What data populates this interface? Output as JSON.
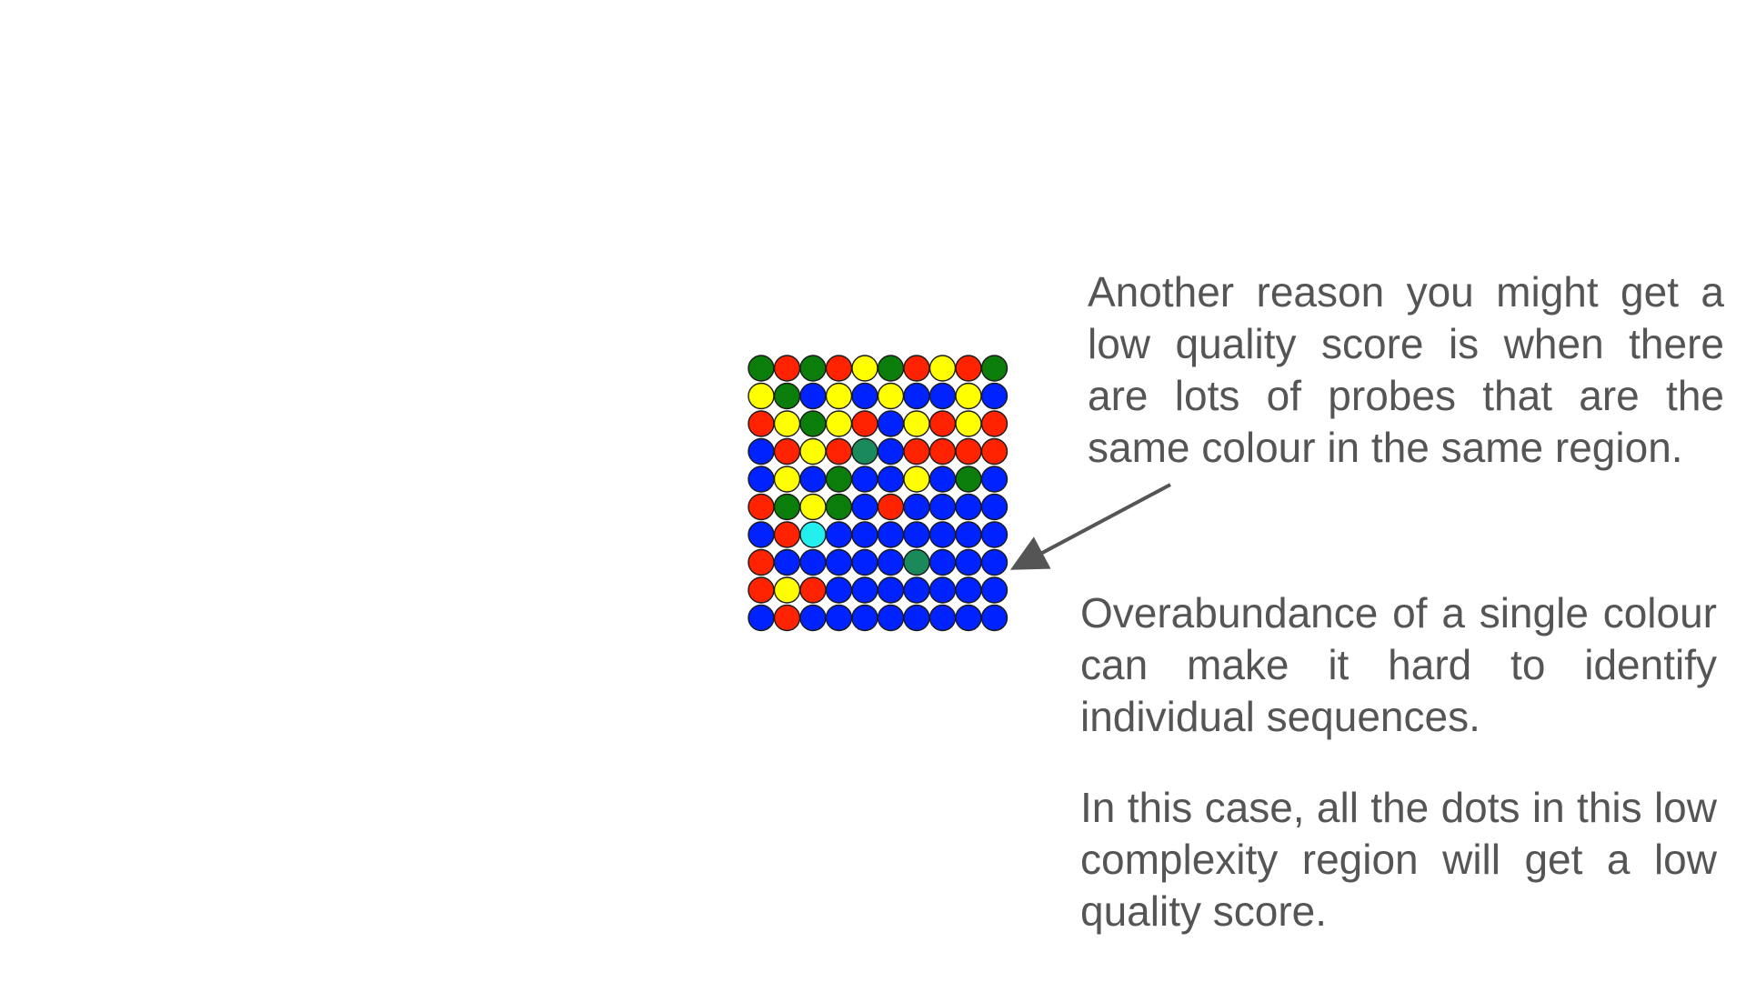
{
  "slide": {
    "callouts": {
      "top": "Another reason you might get a low quality score is when there are lots of probes that are the same colour in the same region.",
      "middle": "Overabundance of a single colour can make it hard to identify individual sequences.",
      "bottom": "In this case, all the dots in this low complexity region will get a low quality score."
    },
    "colors": {
      "G": "#0a7d0a",
      "R": "#ff2200",
      "Y": "#ffff00",
      "B": "#0022ff",
      "T": "#1a8a5a",
      "C": "#22eeee",
      "text": "#555555",
      "arrow": "#555555",
      "outline": "#1a1a1a"
    },
    "probe_grid": [
      [
        "G",
        "R",
        "G",
        "R",
        "Y",
        "G",
        "R",
        "Y",
        "R",
        "G"
      ],
      [
        "Y",
        "G",
        "B",
        "Y",
        "B",
        "Y",
        "B",
        "B",
        "Y",
        "B"
      ],
      [
        "R",
        "Y",
        "G",
        "Y",
        "R",
        "B",
        "Y",
        "R",
        "Y",
        "R"
      ],
      [
        "B",
        "R",
        "Y",
        "R",
        "T",
        "B",
        "R",
        "R",
        "R",
        "R"
      ],
      [
        "B",
        "Y",
        "B",
        "G",
        "B",
        "B",
        "Y",
        "B",
        "G",
        "B"
      ],
      [
        "R",
        "G",
        "Y",
        "G",
        "B",
        "R",
        "B",
        "B",
        "B",
        "B"
      ],
      [
        "B",
        "R",
        "C",
        "B",
        "B",
        "B",
        "B",
        "B",
        "B",
        "B"
      ],
      [
        "R",
        "B",
        "B",
        "B",
        "B",
        "B",
        "T",
        "B",
        "B",
        "B"
      ],
      [
        "R",
        "Y",
        "R",
        "B",
        "B",
        "B",
        "B",
        "B",
        "B",
        "B"
      ],
      [
        "B",
        "R",
        "B",
        "B",
        "B",
        "B",
        "B",
        "B",
        "B",
        "B"
      ]
    ]
  }
}
